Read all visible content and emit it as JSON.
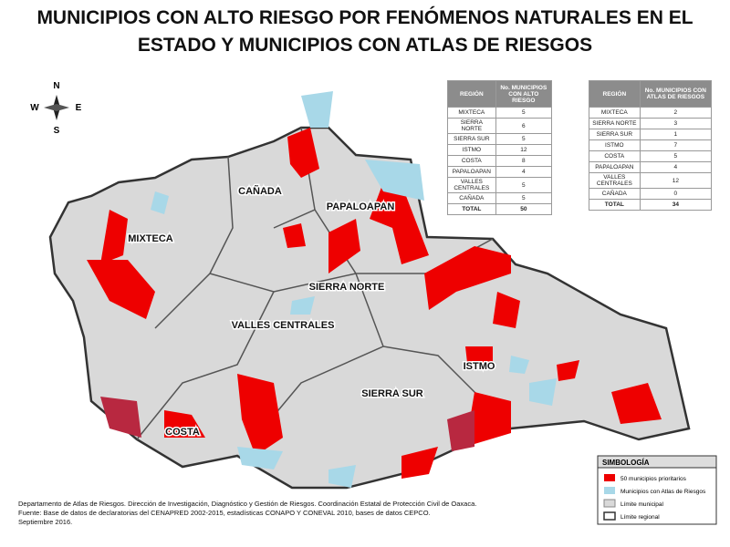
{
  "title": [
    "MUNICIPIOS CON ALTO RIESGO POR FENÓMENOS NATURALES EN EL",
    "ESTADO Y MUNICIPIOS CON ATLAS DE RIESGOS"
  ],
  "compass": {
    "north": "N",
    "east": "E",
    "south": "S",
    "west": "W"
  },
  "table_risk": {
    "headers": [
      "REGIÓN",
      "No. MUNICIPIOS CON ALTO RIESGO"
    ],
    "rows": [
      [
        "MIXTECA",
        5
      ],
      [
        "SIERRA NORTE",
        6
      ],
      [
        "SIERRA SUR",
        5
      ],
      [
        "ISTMO",
        12
      ],
      [
        "COSTA",
        8
      ],
      [
        "PAPALOAPAN",
        4
      ],
      [
        "VALLES CENTRALES",
        5
      ],
      [
        "CAÑADA",
        5
      ]
    ],
    "total": [
      "TOTAL",
      50
    ]
  },
  "table_atlas": {
    "headers": [
      "REGIÓN",
      "No. MUNICIPIOS CON ATLAS DE RIESGOS"
    ],
    "rows": [
      [
        "MIXTECA",
        2
      ],
      [
        "SIERRA NORTE",
        3
      ],
      [
        "SIERRA SUR",
        1
      ],
      [
        "ISTMO",
        7
      ],
      [
        "COSTA",
        5
      ],
      [
        "PAPALOAPAN",
        4
      ],
      [
        "VALLES CENTRALES",
        12
      ],
      [
        "CAÑADA",
        0
      ]
    ],
    "total": [
      "TOTAL",
      34
    ]
  },
  "regions": [
    "MIXTECA",
    "CAÑADA",
    "PAPALOAPAN",
    "SIERRA NORTE",
    "VALLES CENTRALES",
    "ISTMO",
    "SIERRA SUR",
    "COSTA"
  ],
  "legend": {
    "title": "SIMBOLOGÍA",
    "items": [
      "50 municipios prioritarios",
      "Municipios con Atlas de Riesgos",
      "Límite municipal",
      "Límite regional"
    ]
  },
  "footer": [
    "Departamento de Atlas de Riesgos. Dirección de Investigación, Diagnóstico y Gestión de Riesgos. Coordinación Estatal de Protección Civil de Oaxaca.",
    "Fuente: Base de datos de declaratorias del CENAPRED 2002-2015, estadísticas CONAPO Y CONEVAL 2010, bases de datos CEPCO.",
    "Septiembre 2016."
  ]
}
